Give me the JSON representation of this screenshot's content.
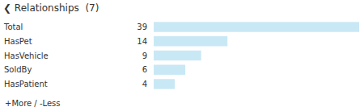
{
  "chart_data": {
    "type": "bar",
    "orientation": "horizontal",
    "title": "❮ Relationships  (7)",
    "categories": [
      "Total",
      "HasPet",
      "HasVehicle",
      "SoldBy",
      "HasPatient"
    ],
    "values": [
      39,
      14,
      9,
      6,
      4
    ],
    "color": "#c9e8f5",
    "xlim": [
      0,
      39
    ],
    "data_labels": true,
    "tick_labels": false,
    "grid": false,
    "annotations": [
      "+More / -Less"
    ]
  }
}
